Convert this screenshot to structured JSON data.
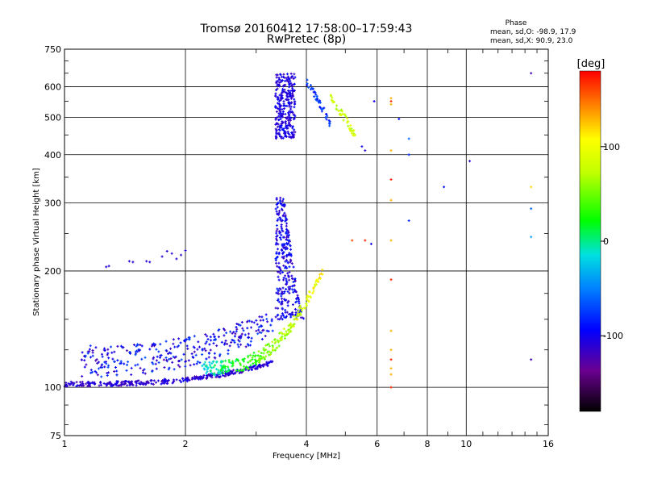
{
  "chart_data": {
    "type": "scatter",
    "title": "Tromsø 20160412 17:58:00–17:59:43",
    "subtitle": "RwPretec (8p)",
    "xlabel": "Frequency [MHz]",
    "ylabel": "Stationary phase Virtual Height [km]",
    "x_scale": "log2",
    "y_scale": "log",
    "xlim": [
      1,
      16
    ],
    "ylim": [
      75,
      750
    ],
    "x_ticks": [
      1,
      2,
      4,
      6,
      8,
      10,
      16
    ],
    "y_ticks": [
      75,
      100,
      200,
      300,
      400,
      500,
      600,
      750
    ],
    "grid": true,
    "stats": {
      "heading": "Phase",
      "line1": "mean, sd,O:  -98.9, 17.9",
      "line2": "mean, sd,X:   90.9, 23.0"
    },
    "colorbar": {
      "label": "[deg]",
      "range": [
        -180,
        180
      ],
      "ticks": [
        100,
        0,
        -100
      ]
    },
    "clusters": [
      {
        "x": [
          1.0,
          3.3
        ],
        "y": [
          102,
          118
        ],
        "phase": -110,
        "shape": "o_low"
      },
      {
        "x": [
          1.1,
          3.3
        ],
        "y": [
          118,
          150
        ],
        "phase": -95,
        "shape": "o_spread"
      },
      {
        "x": [
          3.3,
          3.9
        ],
        "y": [
          150,
          310
        ],
        "phase": -100,
        "shape": "o_cusp"
      },
      {
        "x": [
          2.2,
          4.4
        ],
        "y": [
          112,
          200
        ],
        "phase": 70,
        "shape": "x_trace"
      },
      {
        "x": [
          3.35,
          3.75
        ],
        "y": [
          440,
          650
        ],
        "phase": -105,
        "shape": "column"
      },
      {
        "x": [
          4.0,
          4.6
        ],
        "y": [
          480,
          620
        ],
        "phase": -80,
        "shape": "f2_o"
      },
      {
        "x": [
          4.6,
          5.3
        ],
        "y": [
          450,
          560
        ],
        "phase": 80,
        "shape": "f2_x"
      },
      {
        "x": [
          1.25,
          1.8
        ],
        "y": [
          200,
          225
        ],
        "phase": -110,
        "shape": "es"
      },
      {
        "x": [
          6.5,
          6.5
        ],
        "y": [
          100,
          560
        ],
        "phase": 150,
        "shape": "vertical"
      },
      {
        "x": [
          5.3,
          14.5
        ],
        "y": [
          220,
          650
        ],
        "phase": -100,
        "shape": "sparse"
      }
    ]
  }
}
